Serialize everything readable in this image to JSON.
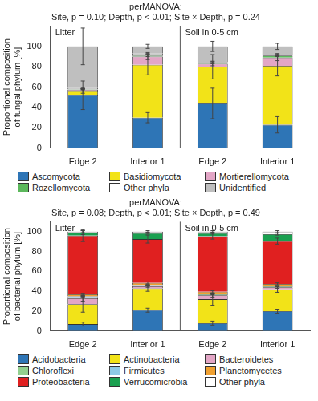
{
  "chart_data": [
    {
      "type": "bar",
      "title": [
        "perMANOVA:",
        "Site, p = 0.10; Depth, p < 0.01; Site × Depth, p = 0.24"
      ],
      "y_label": [
        "Proportional composition",
        "of fungal phylum [%]"
      ],
      "categories": [
        "Edge 2",
        "Interior 1",
        "Edge 2",
        "Interior 1"
      ],
      "groups": [
        "Litter",
        "Soil in 0-5 cm"
      ],
      "stacked": true,
      "grid": false,
      "legend": "bottom",
      "ylim": [
        0,
        120
      ],
      "yticks": [
        0,
        20,
        40,
        60,
        80,
        100
      ],
      "series": [
        {
          "name": "Ascomycota",
          "color": "#2e75b6",
          "values": [
            52,
            30,
            44,
            23
          ],
          "errors": [
            14,
            5,
            15,
            8
          ]
        },
        {
          "name": "Basidiomycota",
          "color": "#f2e318",
          "values": [
            4,
            52,
            36,
            58
          ],
          "errors": [
            2,
            10,
            12,
            10
          ]
        },
        {
          "name": "Mortierellomycota",
          "color": "#e3a6c6",
          "values": [
            1.5,
            8,
            3,
            8
          ],
          "errors": [
            1,
            3,
            2,
            3
          ]
        },
        {
          "name": "Rozellomycota",
          "color": "#5cb85c",
          "values": [
            0.5,
            1,
            0.5,
            2
          ],
          "errors": [
            0.3,
            1,
            0.5,
            1
          ]
        },
        {
          "name": "Other phyla",
          "color": "#ffffff",
          "values": [
            1,
            2,
            1,
            1
          ],
          "errors": [
            0.5,
            1,
            1,
            1
          ]
        },
        {
          "name": "Unidentified",
          "color": "#bfbfbf",
          "values": [
            41,
            7,
            15.5,
            8
          ],
          "errors": [
            18,
            2,
            5,
            3
          ]
        }
      ]
    },
    {
      "type": "bar",
      "title": [
        "perMANOVA:",
        "Site, p = 0.08; Depth, p < 0.01; Site × Depth, p = 0.49"
      ],
      "y_label": [
        "Proportional composition",
        "of bacterial phylum [%]"
      ],
      "categories": [
        "Edge 2",
        "Interior 1",
        "Edge 2",
        "Interior 1"
      ],
      "groups": [
        "Litter",
        "Soil in 0-5 cm"
      ],
      "stacked": true,
      "grid": false,
      "legend": "bottom",
      "ylim": [
        0,
        110
      ],
      "yticks": [
        0,
        20,
        40,
        60,
        80,
        100
      ],
      "series": [
        {
          "name": "Acidobacteria",
          "color": "#2e75b6",
          "values": [
            7,
            21,
            8,
            20
          ],
          "errors": [
            2,
            2,
            2,
            2
          ]
        },
        {
          "name": "Actinobacteria",
          "color": "#f2e318",
          "values": [
            20,
            22,
            24,
            22
          ],
          "errors": [
            8,
            3,
            6,
            3
          ]
        },
        {
          "name": "Bacteroidetes",
          "color": "#e3a6c6",
          "values": [
            6,
            2,
            4,
            2
          ],
          "errors": [
            3,
            1,
            2,
            1
          ]
        },
        {
          "name": "Chloroflexi",
          "color": "#92d08f",
          "values": [
            1,
            1,
            1,
            1
          ],
          "errors": [
            0.5,
            0.5,
            0.5,
            0.5
          ]
        },
        {
          "name": "Firmicutes",
          "color": "#8ecae6",
          "values": [
            1,
            0.5,
            0.5,
            0.5
          ],
          "errors": [
            0.5,
            0.3,
            0.3,
            0.3
          ]
        },
        {
          "name": "Planctomycetes",
          "color": "#f0a030",
          "values": [
            2,
            2,
            2,
            2
          ],
          "errors": [
            1,
            1,
            1,
            1
          ]
        },
        {
          "name": "Proteobacteria",
          "color": "#e02020",
          "values": [
            59,
            44,
            56,
            43
          ],
          "errors": [
            6,
            4,
            3,
            3
          ]
        },
        {
          "name": "Verrucomicrobia",
          "color": "#1aa050",
          "values": [
            3,
            6,
            3,
            7
          ],
          "errors": [
            2,
            1,
            1,
            1
          ]
        },
        {
          "name": "Other phyla",
          "color": "#ffffff",
          "values": [
            1,
            1.5,
            1.5,
            2.5
          ],
          "errors": [
            1,
            1,
            1,
            1
          ]
        }
      ]
    }
  ]
}
